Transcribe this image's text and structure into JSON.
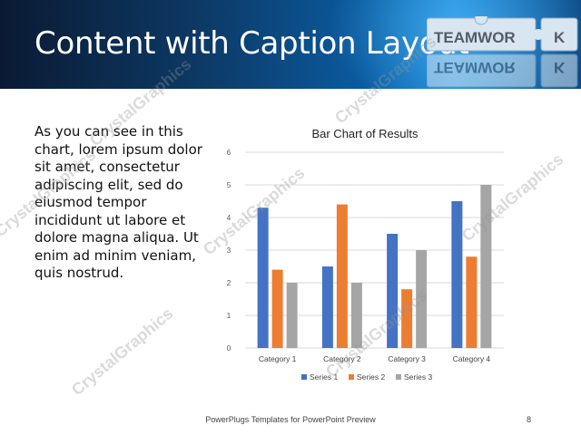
{
  "slide": {
    "title": "Content with Caption Layout",
    "body": "As you can see in this chart, lorem ipsum dolor sit amet, consectetur adipiscing elit, sed do eiusmod tempor incididunt ut labore et dolore magna aliqua. Ut enim ad minim veniam, quis nostrud.",
    "footer": "PowerPlugs Templates for PowerPoint Preview",
    "page_number": "8",
    "puzzle_text": "TEAMWOR",
    "puzzle_letter": "K",
    "watermark": "CrystalGraphics"
  },
  "colors": {
    "series1": "#4472c4",
    "series2": "#ed7d31",
    "series3": "#a5a5a5",
    "grid": "#d9d9d9"
  },
  "chart_data": {
    "type": "bar",
    "title": "Bar Chart of Results",
    "categories": [
      "Category 1",
      "Category 2",
      "Category 3",
      "Category 4"
    ],
    "series": [
      {
        "name": "Series 1",
        "values": [
          4.3,
          2.5,
          3.5,
          4.5
        ]
      },
      {
        "name": "Series 2",
        "values": [
          2.4,
          4.4,
          1.8,
          2.8
        ]
      },
      {
        "name": "Series 3",
        "values": [
          2,
          2,
          3,
          5
        ]
      }
    ],
    "ylim": [
      0,
      6
    ],
    "yticks": [
      "0",
      "1",
      "2",
      "3",
      "4",
      "5",
      "6"
    ],
    "grid": true,
    "legend": "bottom"
  }
}
